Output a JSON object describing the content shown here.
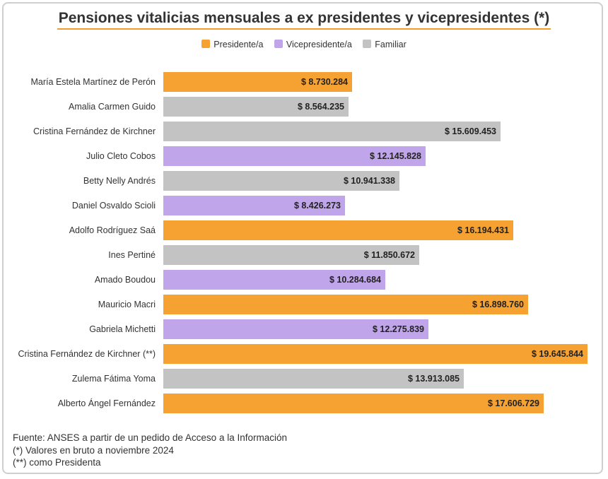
{
  "chart_data": {
    "type": "bar",
    "orientation": "horizontal",
    "title": "Pensiones vitalicias mensuales a ex presidentes y vicepresidentes (*)",
    "legend": {
      "placement": "top-center",
      "items": [
        {
          "name": "Presidente/a",
          "color": "#f5a233"
        },
        {
          "name": "Vicepresidente/a",
          "color": "#c0a5ea"
        },
        {
          "name": "Familiar",
          "color": "#c3c3c3"
        }
      ]
    },
    "categories": [
      "María Estela Martínez de Perón",
      "Amalia Carmen Guido",
      "Cristina Fernández de Kirchner",
      "Julio Cleto Cobos",
      "Betty Nelly Andrés",
      "Daniel Osvaldo Scioli",
      "Adolfo Rodríguez Saá",
      "Ines Pertiné",
      "Amado Boudou",
      "Mauricio Macri",
      "Gabriela Michetti",
      "Cristina Fernández de Kirchner (**)",
      "Zulema Fátima Yoma",
      "Alberto Ángel Fernández"
    ],
    "values": [
      8730284,
      8564235,
      15609453,
      12145828,
      10941338,
      8426273,
      16194431,
      11850672,
      10284684,
      16898760,
      12275839,
      19645844,
      13913085,
      17606729
    ],
    "value_labels": [
      "$ 8.730.284",
      "$ 8.564.235",
      "$ 15.609.453",
      "$ 12.145.828",
      "$ 10.941.338",
      "$ 8.426.273",
      "$ 16.194.431",
      "$ 11.850.672",
      "$ 10.284.684",
      "$ 16.898.760",
      "$ 12.275.839",
      "$ 19.645.844",
      "$ 13.913.085",
      "$ 17.606.729"
    ],
    "groups": [
      "Presidente/a",
      "Familiar",
      "Familiar",
      "Vicepresidente/a",
      "Familiar",
      "Vicepresidente/a",
      "Presidente/a",
      "Familiar",
      "Vicepresidente/a",
      "Presidente/a",
      "Vicepresidente/a",
      "Presidente/a",
      "Familiar",
      "Presidente/a"
    ],
    "xlim": [
      0,
      19645844
    ],
    "grid": false,
    "xlabel": "",
    "ylabel": ""
  },
  "notes": [
    "Fuente: ANSES a partir de un pedido de Acceso a la Información",
    "(*) Valores en bruto a noviembre 2024",
    "(**) como Presidenta"
  ]
}
